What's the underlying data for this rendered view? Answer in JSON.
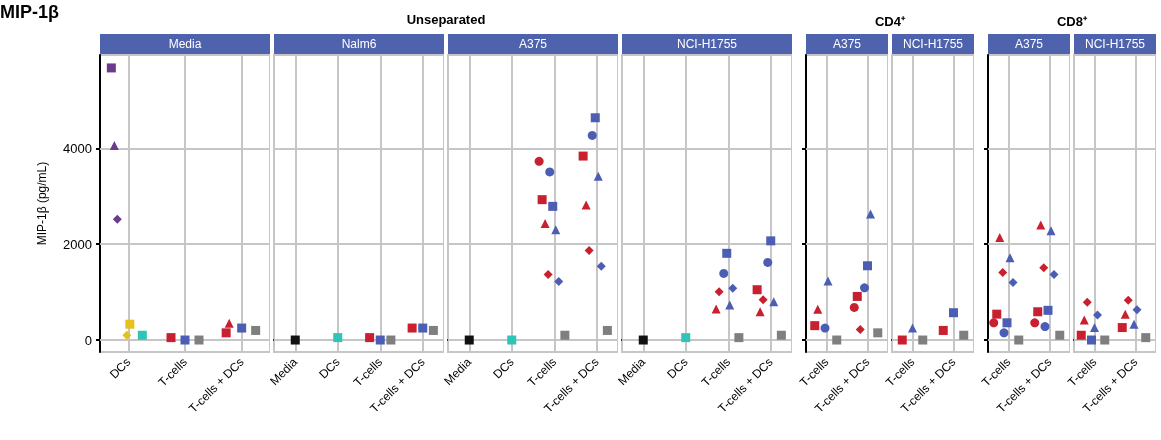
{
  "chart_data": [
    {
      "type": "scatter",
      "title": "Media",
      "annotations": [
        "MIP-1β"
      ],
      "ylabel": "MIP-1β (pg/mL)",
      "categories": [
        "DCs",
        "T-cells",
        "T-cells + DCs"
      ],
      "ylim": [
        -250,
        5950
      ],
      "yticks": [
        0,
        2000,
        4000
      ],
      "grid": true,
      "series": [
        {
          "color": "#6b3a8c",
          "marker": "square",
          "values": [
            5680,
            null,
            null
          ]
        },
        {
          "color": "#6b3a8c",
          "marker": "triangle",
          "values": [
            4060,
            null,
            null
          ]
        },
        {
          "color": "#6b3a8c",
          "marker": "diamond",
          "values": [
            2520,
            null,
            null
          ]
        },
        {
          "color": "#e5c01e",
          "marker": "diamond",
          "values": [
            100,
            null,
            null
          ]
        },
        {
          "color": "#e5c01e",
          "marker": "square",
          "values": [
            330,
            null,
            null
          ]
        },
        {
          "color": "#2ec4b6",
          "marker": "square",
          "values": [
            100,
            null,
            null
          ]
        },
        {
          "color": "#c8202f",
          "marker": "square",
          "values": [
            null,
            50,
            150
          ]
        },
        {
          "color": "#c8202f",
          "marker": "triangle",
          "values": [
            null,
            null,
            350
          ]
        },
        {
          "color": "#4b5eb3",
          "marker": "square",
          "values": [
            null,
            0,
            250
          ]
        },
        {
          "color": "#7f7f7f",
          "marker": "square",
          "values": [
            null,
            0,
            200
          ]
        }
      ]
    },
    {
      "type": "scatter",
      "title": "Nalm6",
      "subtitle": "Unseparated",
      "categories": [
        "Media",
        "DCs",
        "T-cells",
        "T-cells + DCs"
      ],
      "ylim": [
        -250,
        5950
      ],
      "yticks": [
        0,
        2000,
        4000
      ],
      "grid": true,
      "tick_labels": "x",
      "series": [
        {
          "color": "#111111",
          "marker": "square",
          "values": [
            0,
            null,
            null,
            null
          ]
        },
        {
          "color": "#2ec4b6",
          "marker": "square",
          "values": [
            null,
            50,
            null,
            null
          ]
        },
        {
          "color": "#c8202f",
          "marker": "square",
          "values": [
            null,
            null,
            50,
            250
          ]
        },
        {
          "color": "#4b5eb3",
          "marker": "square",
          "values": [
            null,
            null,
            0,
            250
          ]
        },
        {
          "color": "#7f7f7f",
          "marker": "square",
          "values": [
            null,
            null,
            0,
            200
          ]
        }
      ]
    },
    {
      "type": "scatter",
      "title": "A375",
      "categories": [
        "Media",
        "DCs",
        "T-cells",
        "T-cells + DCs"
      ],
      "ylim": [
        -250,
        5950
      ],
      "yticks": [
        0,
        2000,
        4000
      ],
      "grid": true,
      "tick_labels": "x",
      "series": [
        {
          "color": "#111111",
          "marker": "square",
          "values": [
            0,
            null,
            null,
            null
          ]
        },
        {
          "color": "#2ec4b6",
          "marker": "square",
          "values": [
            null,
            0,
            null,
            null
          ]
        },
        {
          "color": "#c8202f",
          "marker": "circle",
          "values": [
            null,
            null,
            3730,
            null
          ]
        },
        {
          "color": "#c8202f",
          "marker": "square",
          "values": [
            null,
            null,
            2930,
            3840
          ]
        },
        {
          "color": "#c8202f",
          "marker": "triangle",
          "values": [
            null,
            null,
            2430,
            2820
          ]
        },
        {
          "color": "#c8202f",
          "marker": "diamond",
          "values": [
            null,
            null,
            1370,
            1870
          ]
        },
        {
          "color": "#4b5eb3",
          "marker": "circle",
          "values": [
            null,
            null,
            3510,
            4270
          ]
        },
        {
          "color": "#4b5eb3",
          "marker": "square",
          "values": [
            null,
            null,
            2790,
            4640
          ]
        },
        {
          "color": "#4b5eb3",
          "marker": "triangle",
          "values": [
            null,
            null,
            2300,
            3420
          ]
        },
        {
          "color": "#4b5eb3",
          "marker": "diamond",
          "values": [
            null,
            null,
            1220,
            1540
          ]
        },
        {
          "color": "#7f7f7f",
          "marker": "square",
          "values": [
            null,
            null,
            100,
            200
          ]
        }
      ]
    },
    {
      "type": "scatter",
      "title": "NCI-H1755",
      "categories": [
        "Media",
        "DCs",
        "T-cells",
        "T-cells + DCs"
      ],
      "ylim": [
        -250,
        5950
      ],
      "yticks": [
        0,
        2000,
        4000
      ],
      "grid": true,
      "tick_labels": "x",
      "series": [
        {
          "color": "#111111",
          "marker": "square",
          "values": [
            0,
            null,
            null,
            null
          ]
        },
        {
          "color": "#2ec4b6",
          "marker": "square",
          "values": [
            null,
            50,
            null,
            null
          ]
        },
        {
          "color": "#c8202f",
          "marker": "square",
          "values": [
            null,
            null,
            null,
            1050
          ]
        },
        {
          "color": "#c8202f",
          "marker": "triangle",
          "values": [
            null,
            null,
            650,
            590
          ]
        },
        {
          "color": "#c8202f",
          "marker": "diamond",
          "values": [
            null,
            null,
            1010,
            840
          ]
        },
        {
          "color": "#4b5eb3",
          "marker": "circle",
          "values": [
            null,
            null,
            1390,
            1620
          ]
        },
        {
          "color": "#4b5eb3",
          "marker": "square",
          "values": [
            null,
            null,
            1810,
            2070
          ]
        },
        {
          "color": "#4b5eb3",
          "marker": "triangle",
          "values": [
            null,
            null,
            730,
            800
          ]
        },
        {
          "color": "#4b5eb3",
          "marker": "diamond",
          "values": [
            null,
            null,
            1080,
            null
          ]
        },
        {
          "color": "#7f7f7f",
          "marker": "square",
          "values": [
            null,
            null,
            50,
            100
          ]
        }
      ]
    },
    {
      "type": "scatter",
      "title": "A375",
      "subtitle": "CD4⁺",
      "categories": [
        "T-cells",
        "T-cells + DCs"
      ],
      "ylim": [
        -250,
        5950
      ],
      "yticks": [
        0,
        2000,
        4000
      ],
      "grid": true,
      "tick_labels": "x",
      "series": [
        {
          "color": "#c8202f",
          "marker": "circle",
          "values": [
            null,
            680
          ]
        },
        {
          "color": "#c8202f",
          "marker": "square",
          "values": [
            300,
            910
          ]
        },
        {
          "color": "#c8202f",
          "marker": "triangle",
          "values": [
            640,
            null
          ]
        },
        {
          "color": "#c8202f",
          "marker": "diamond",
          "values": [
            null,
            220
          ]
        },
        {
          "color": "#4b5eb3",
          "marker": "circle",
          "values": [
            250,
            1090
          ]
        },
        {
          "color": "#4b5eb3",
          "marker": "square",
          "values": [
            null,
            1550
          ]
        },
        {
          "color": "#4b5eb3",
          "marker": "triangle",
          "values": [
            1230,
            2630
          ]
        },
        {
          "color": "#7f7f7f",
          "marker": "square",
          "values": [
            0,
            150
          ]
        }
      ]
    },
    {
      "type": "scatter",
      "title": "NCI-H1755",
      "categories": [
        "T-cells",
        "T-cells + DCs"
      ],
      "ylim": [
        -250,
        5950
      ],
      "yticks": [
        0,
        2000,
        4000
      ],
      "grid": true,
      "tick_labels": "x",
      "series": [
        {
          "color": "#c8202f",
          "marker": "square",
          "values": [
            0,
            200
          ]
        },
        {
          "color": "#4b5eb3",
          "marker": "square",
          "values": [
            null,
            570
          ]
        },
        {
          "color": "#4b5eb3",
          "marker": "triangle",
          "values": [
            250,
            null
          ]
        },
        {
          "color": "#7f7f7f",
          "marker": "square",
          "values": [
            0,
            100
          ]
        }
      ]
    },
    {
      "type": "scatter",
      "title": "A375",
      "subtitle": "CD8⁺",
      "categories": [
        "T-cells",
        "T-cells + DCs"
      ],
      "ylim": [
        -250,
        5950
      ],
      "yticks": [
        0,
        2000,
        4000
      ],
      "grid": true,
      "tick_labels": "x",
      "series": [
        {
          "color": "#c8202f",
          "marker": "circle",
          "values": [
            360,
            360
          ]
        },
        {
          "color": "#c8202f",
          "marker": "square",
          "values": [
            540,
            590
          ]
        },
        {
          "color": "#c8202f",
          "marker": "triangle",
          "values": [
            2140,
            2400
          ]
        },
        {
          "color": "#c8202f",
          "marker": "diamond",
          "values": [
            1410,
            1510
          ]
        },
        {
          "color": "#4b5eb3",
          "marker": "circle",
          "values": [
            150,
            280
          ]
        },
        {
          "color": "#4b5eb3",
          "marker": "square",
          "values": [
            360,
            620
          ]
        },
        {
          "color": "#4b5eb3",
          "marker": "triangle",
          "values": [
            1720,
            2280
          ]
        },
        {
          "color": "#4b5eb3",
          "marker": "diamond",
          "values": [
            1200,
            1370
          ]
        },
        {
          "color": "#7f7f7f",
          "marker": "square",
          "values": [
            0,
            100
          ]
        }
      ]
    },
    {
      "type": "scatter",
      "title": "NCI-H1755",
      "categories": [
        "T-cells",
        "T-cells + DCs"
      ],
      "ylim": [
        -250,
        5950
      ],
      "yticks": [
        0,
        2000,
        4000
      ],
      "grid": true,
      "tick_labels": "x",
      "series": [
        {
          "color": "#c8202f",
          "marker": "square",
          "values": [
            100,
            260
          ]
        },
        {
          "color": "#c8202f",
          "marker": "triangle",
          "values": [
            420,
            540
          ]
        },
        {
          "color": "#c8202f",
          "marker": "diamond",
          "values": [
            790,
            830
          ]
        },
        {
          "color": "#4b5eb3",
          "marker": "square",
          "values": [
            0,
            null
          ]
        },
        {
          "color": "#4b5eb3",
          "marker": "triangle",
          "values": [
            260,
            330
          ]
        },
        {
          "color": "#4b5eb3",
          "marker": "diamond",
          "values": [
            520,
            630
          ]
        },
        {
          "color": "#7f7f7f",
          "marker": "square",
          "values": [
            0,
            50
          ]
        }
      ]
    }
  ]
}
